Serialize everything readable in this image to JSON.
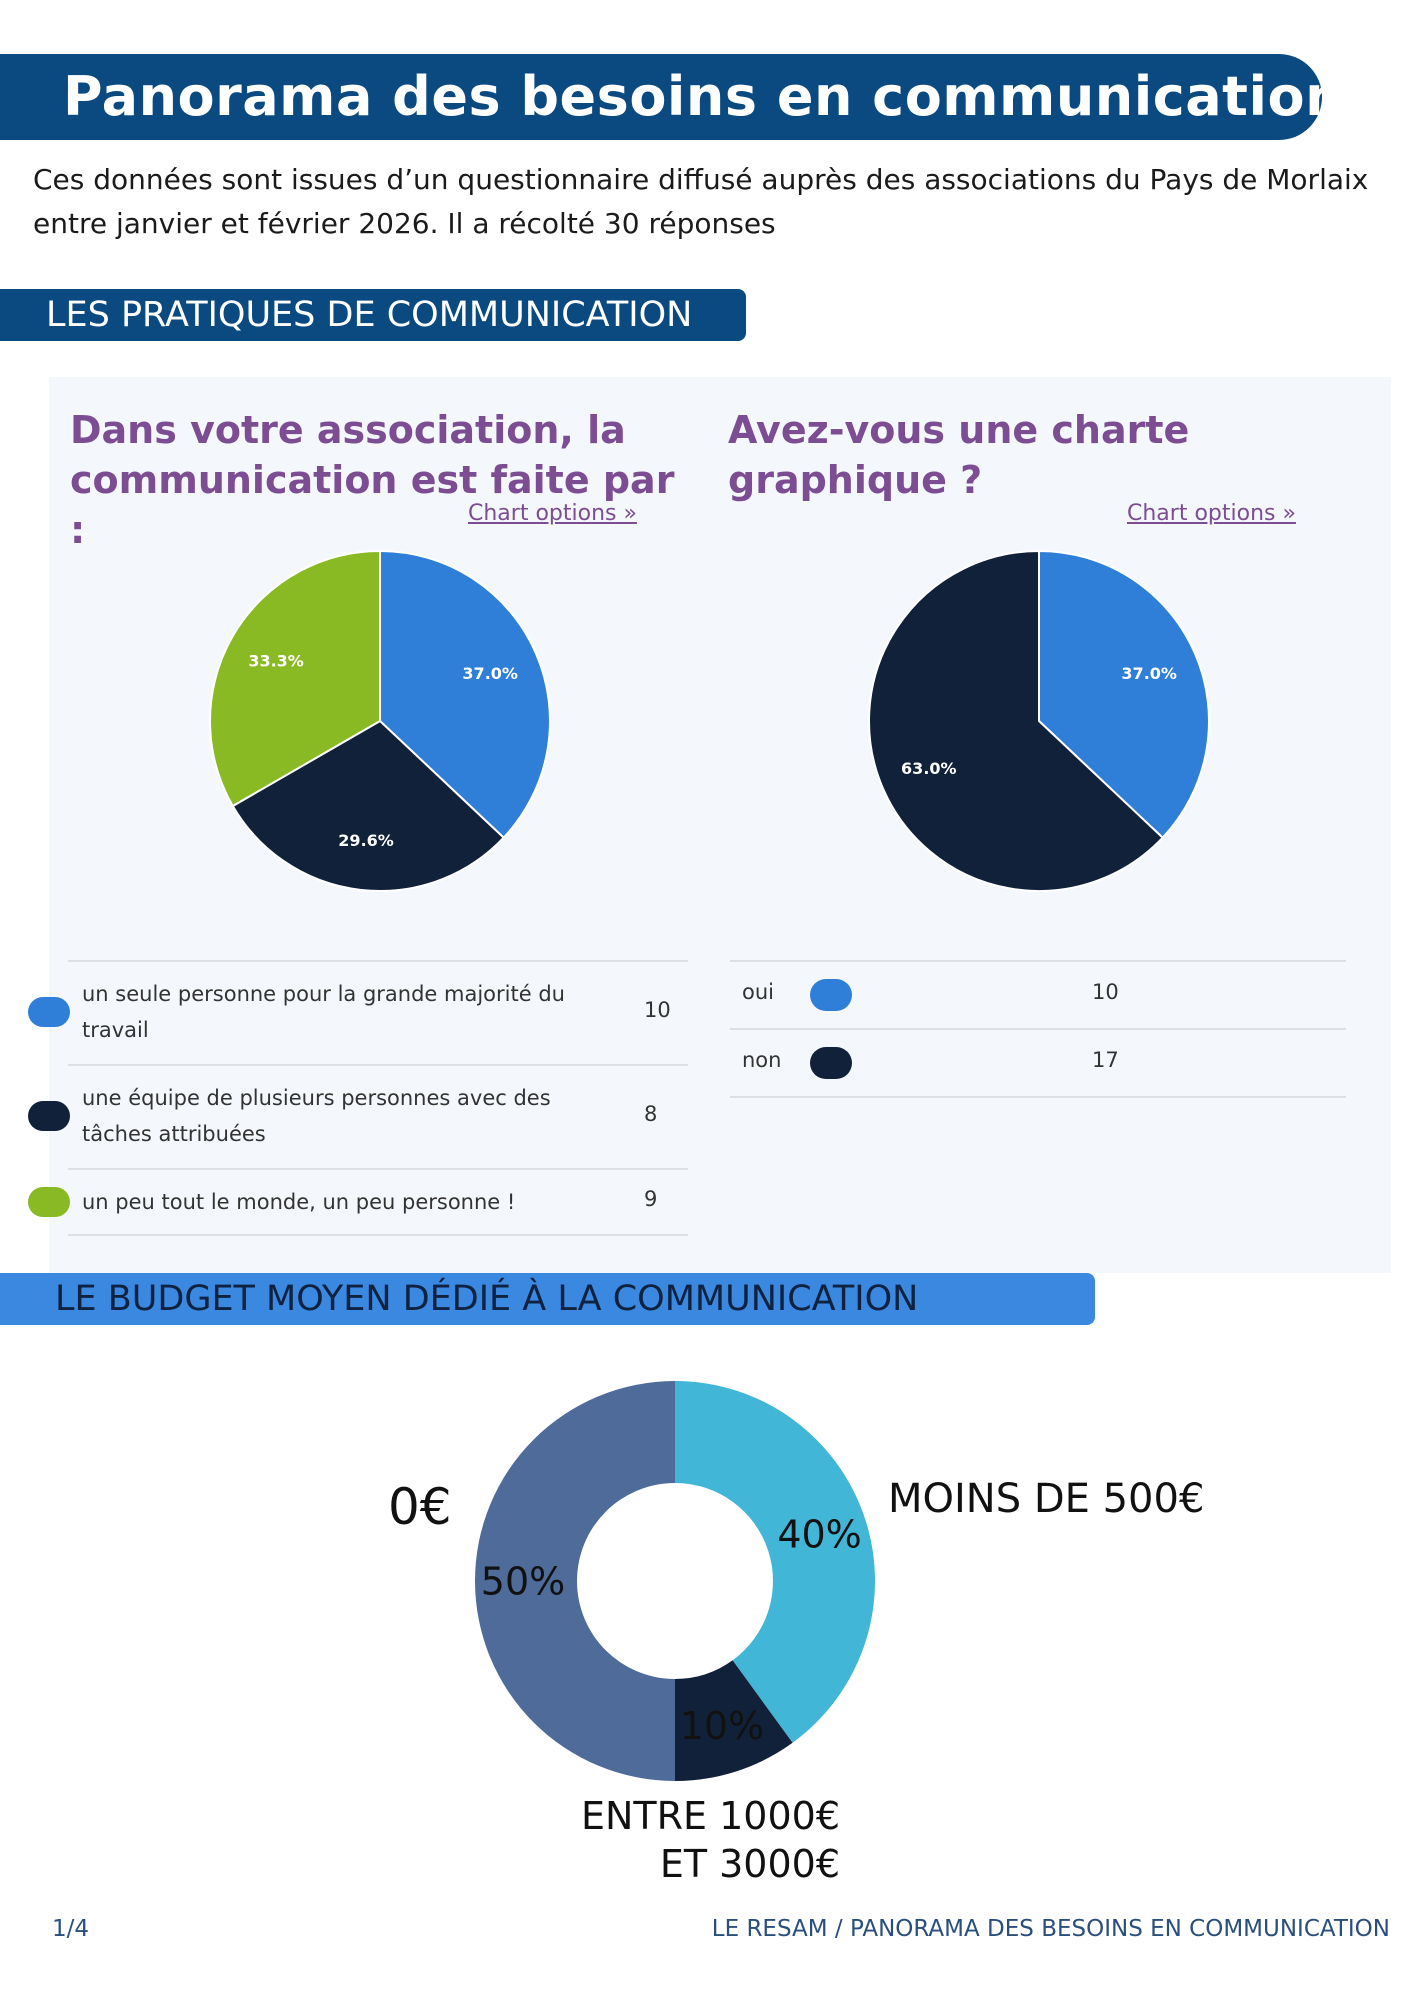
{
  "header": {
    "title": "Panorama des besoins en communication",
    "intro": "Ces données sont issues d’un questionnaire diffusé auprès des associations du Pays de Morlaix entre janvier et février 2026. Il a récolté 30 réponses"
  },
  "sections": {
    "practices": "LES PRATIQUES DE COMMUNICATION",
    "budget": "LE BUDGET MOYEN DÉDIÉ À LA COMMUNICATION"
  },
  "chart_options_label": "Chart options »",
  "chart_data": [
    {
      "type": "pie",
      "title": "Dans votre association, la communication est faite par :",
      "categories": [
        "un seule personne pour la grande majorité du travail",
        "une équipe de plusieurs personnes avec des tâches attribuées",
        "un peu tout le monde, un peu personne !"
      ],
      "values": [
        10,
        8,
        9
      ],
      "percent_labels": [
        "37.0%",
        "29.6%",
        "33.3%"
      ],
      "colors": [
        "#2f7fd8",
        "#12213a",
        "#8aba23"
      ]
    },
    {
      "type": "pie",
      "title": "Avez-vous une charte graphique ?",
      "categories": [
        "oui",
        "non"
      ],
      "values": [
        10,
        17
      ],
      "percent_labels": [
        "37.0%",
        "63.0%"
      ],
      "colors": [
        "#2f7fd8",
        "#12213a"
      ]
    },
    {
      "type": "pie",
      "title": "",
      "categories": [
        "MOINS DE 500€",
        "ENTRE 1000€ ET 3000€",
        "0€"
      ],
      "values": [
        40,
        10,
        50
      ],
      "percent_labels": [
        "40%",
        "10%",
        "50%"
      ],
      "colors": [
        "#42b6d6",
        "#12213a",
        "#4f6b99"
      ]
    }
  ],
  "footer": {
    "page": "1/4",
    "source": "LE RESAM / PANORAMA DES BESOINS EN COMMUNICATION"
  }
}
